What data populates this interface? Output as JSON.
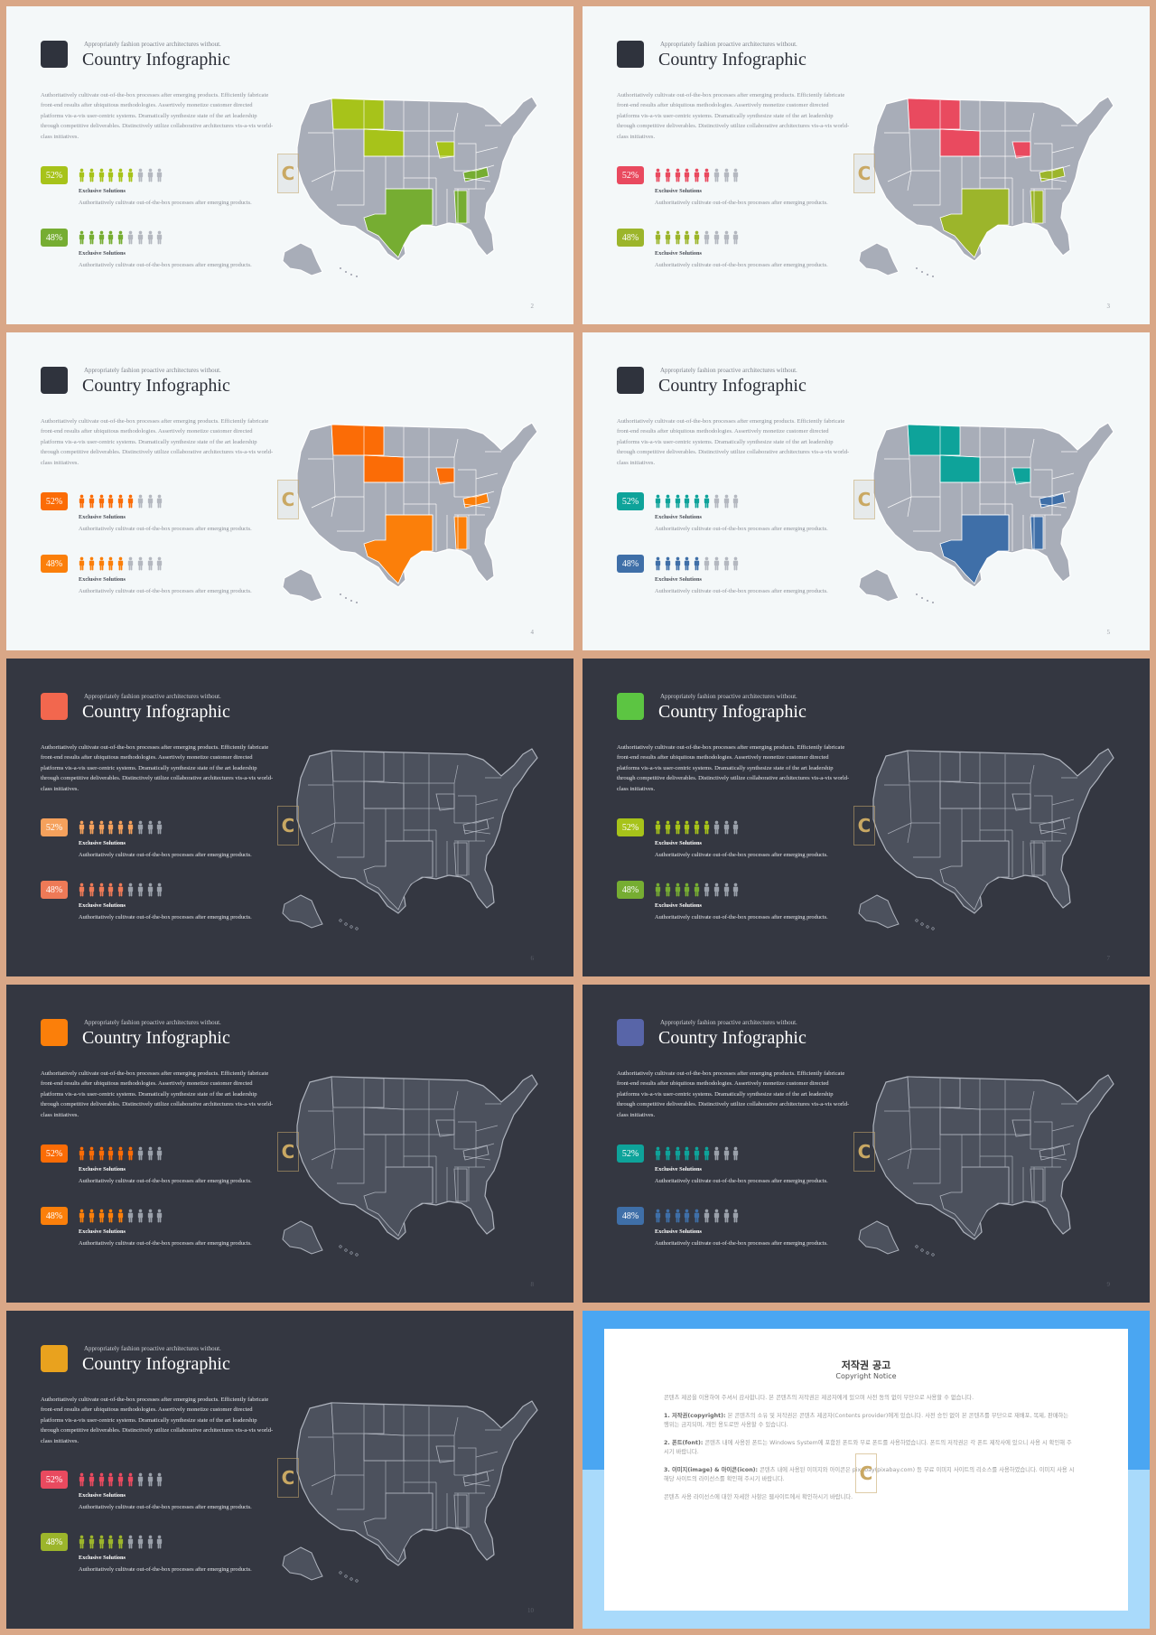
{
  "slides": [
    {
      "id": 2,
      "theme": "light",
      "accent": "#2f333d",
      "page": "2",
      "subtitle": "Appropriately fashion proactive architectures without.",
      "title": "Country Infographic",
      "desc": "Authoritatively cultivate out-of-the-box processes after emerging products. Efficiently fabricate front-end results after ubiquitous methodologies. Assertively monetize customer directed platforms vis-a-vis user-centric systems. Dramatically synthesize state of the art leadership through competitive deliverables. Distinctively utilize collaborative architectures vis-a-vis world-class initiatives.",
      "stats": [
        {
          "value": "52%",
          "color": "#a7c31a",
          "filled": 6,
          "title": "Exclusive Solutions",
          "desc": "Authoritatively cultivate out-of-the-box processes after emerging products."
        },
        {
          "value": "48%",
          "color": "#76ad32",
          "filled": 5,
          "title": "Exclusive Solutions",
          "desc": "Authoritatively cultivate out-of-the-box processes after emerging products."
        }
      ],
      "map_colors": {
        "base": "#a8adb8",
        "border": "#ffffff",
        "group_a": "#a7c31a",
        "group_b": "#76ad32"
      }
    },
    {
      "id": 3,
      "theme": "light",
      "accent": "#2f333d",
      "page": "3",
      "subtitle": "Appropriately fashion proactive architectures without.",
      "title": "Country Infographic",
      "desc": "Authoritatively cultivate out-of-the-box processes after emerging products. Efficiently fabricate front-end results after ubiquitous methodologies. Assertively monetize customer directed platforms vis-a-vis user-centric systems. Dramatically synthesize state of the art leadership through competitive deliverables. Distinctively utilize collaborative architectures vis-a-vis world-class initiatives.",
      "stats": [
        {
          "value": "52%",
          "color": "#e94a5f",
          "filled": 6,
          "title": "Exclusive Solutions",
          "desc": "Authoritatively cultivate out-of-the-box processes after emerging products."
        },
        {
          "value": "48%",
          "color": "#9cb52b",
          "filled": 5,
          "title": "Exclusive Solutions",
          "desc": "Authoritatively cultivate out-of-the-box processes after emerging products."
        }
      ],
      "map_colors": {
        "base": "#a8adb8",
        "border": "#ffffff",
        "group_a": "#e94a5f",
        "group_b": "#9cb52b"
      }
    },
    {
      "id": 4,
      "theme": "light",
      "accent": "#2f333d",
      "page": "4",
      "subtitle": "Appropriately fashion proactive architectures without.",
      "title": "Country Infographic",
      "desc": "Authoritatively cultivate out-of-the-box processes after emerging products. Efficiently fabricate front-end results after ubiquitous methodologies. Assertively monetize customer directed platforms vis-a-vis user-centric systems. Dramatically synthesize state of the art leadership through competitive deliverables. Distinctively utilize collaborative architectures vis-a-vis world-class initiatives.",
      "stats": [
        {
          "value": "52%",
          "color": "#fb6c06",
          "filled": 6,
          "title": "Exclusive Solutions",
          "desc": "Authoritatively cultivate out-of-the-box processes after emerging products."
        },
        {
          "value": "48%",
          "color": "#fb7f0a",
          "filled": 5,
          "title": "Exclusive Solutions",
          "desc": "Authoritatively cultivate out-of-the-box processes after emerging products."
        }
      ],
      "map_colors": {
        "base": "#a8adb8",
        "border": "#ffffff",
        "group_a": "#fb6c06",
        "group_b": "#fb7f0a"
      }
    },
    {
      "id": 5,
      "theme": "light",
      "accent": "#2f333d",
      "page": "5",
      "subtitle": "Appropriately fashion proactive architectures without.",
      "title": "Country Infographic",
      "desc": "Authoritatively cultivate out-of-the-box processes after emerging products. Efficiently fabricate front-end results after ubiquitous methodologies. Assertively monetize customer directed platforms vis-a-vis user-centric systems. Dramatically synthesize state of the art leadership through competitive deliverables. Distinctively utilize collaborative architectures vis-a-vis world-class initiatives.",
      "stats": [
        {
          "value": "52%",
          "color": "#0ea39a",
          "filled": 6,
          "title": "Exclusive Solutions",
          "desc": "Authoritatively cultivate out-of-the-box processes after emerging products."
        },
        {
          "value": "48%",
          "color": "#3f6fa8",
          "filled": 5,
          "title": "Exclusive Solutions",
          "desc": "Authoritatively cultivate out-of-the-box processes after emerging products."
        }
      ],
      "map_colors": {
        "base": "#a8adb8",
        "border": "#ffffff",
        "group_a": "#0ea39a",
        "group_b": "#3f6fa8"
      }
    },
    {
      "id": 6,
      "theme": "dark",
      "accent": "#f2674e",
      "page": "6",
      "subtitle": "Appropriately fashion proactive architectures without.",
      "title": "Country Infographic",
      "desc": "Authoritatively cultivate out-of-the-box processes after emerging products. Efficiently fabricate front-end results after ubiquitous methodologies. Assertively monetize customer directed platforms vis-a-vis user-centric systems. Dramatically synthesize state of the art leadership through competitive deliverables. Distinctively utilize collaborative architectures vis-a-vis world-class initiatives.",
      "stats": [
        {
          "value": "52%",
          "color": "#f5a15c",
          "filled": 6,
          "title": "Exclusive Solutions",
          "desc": "Authoritatively cultivate out-of-the-box processes after emerging products."
        },
        {
          "value": "48%",
          "color": "#ee7a57",
          "filled": 5,
          "title": "Exclusive Solutions",
          "desc": "Authoritatively cultivate out-of-the-box processes after emerging products."
        }
      ],
      "map_colors": {
        "base": "#4c515d",
        "border": "#aeb3bd",
        "group_a": "#4c515d",
        "group_b": "#4c515d"
      }
    },
    {
      "id": 7,
      "theme": "dark",
      "accent": "#5cc542",
      "page": "7",
      "subtitle": "Appropriately fashion proactive architectures without.",
      "title": "Country Infographic",
      "desc": "Authoritatively cultivate out-of-the-box processes after emerging products. Efficiently fabricate front-end results after ubiquitous methodologies. Assertively monetize customer directed platforms vis-a-vis user-centric systems. Dramatically synthesize state of the art leadership through competitive deliverables. Distinctively utilize collaborative architectures vis-a-vis world-class initiatives.",
      "stats": [
        {
          "value": "52%",
          "color": "#a7c31a",
          "filled": 6,
          "title": "Exclusive Solutions",
          "desc": "Authoritatively cultivate out-of-the-box processes after emerging products."
        },
        {
          "value": "48%",
          "color": "#76ad32",
          "filled": 5,
          "title": "Exclusive Solutions",
          "desc": "Authoritatively cultivate out-of-the-box processes after emerging products."
        }
      ],
      "map_colors": {
        "base": "#4c515d",
        "border": "#aeb3bd",
        "group_a": "#4c515d",
        "group_b": "#4c515d"
      }
    },
    {
      "id": 8,
      "theme": "dark",
      "accent": "#fb7f0a",
      "page": "8",
      "subtitle": "Appropriately fashion proactive architectures without.",
      "title": "Country Infographic",
      "desc": "Authoritatively cultivate out-of-the-box processes after emerging products. Efficiently fabricate front-end results after ubiquitous methodologies. Assertively monetize customer directed platforms vis-a-vis user-centric systems. Dramatically synthesize state of the art leadership through competitive deliverables. Distinctively utilize collaborative architectures vis-a-vis world-class initiatives.",
      "stats": [
        {
          "value": "52%",
          "color": "#fb6c06",
          "filled": 6,
          "title": "Exclusive Solutions",
          "desc": "Authoritatively cultivate out-of-the-box processes after emerging products."
        },
        {
          "value": "48%",
          "color": "#fb7f0a",
          "filled": 5,
          "title": "Exclusive Solutions",
          "desc": "Authoritatively cultivate out-of-the-box processes after emerging products."
        }
      ],
      "map_colors": {
        "base": "#4c515d",
        "border": "#aeb3bd",
        "group_a": "#4c515d",
        "group_b": "#4c515d"
      }
    },
    {
      "id": 9,
      "theme": "dark",
      "accent": "#5865a8",
      "page": "9",
      "subtitle": "Appropriately fashion proactive architectures without.",
      "title": "Country Infographic",
      "desc": "Authoritatively cultivate out-of-the-box processes after emerging products. Efficiently fabricate front-end results after ubiquitous methodologies. Assertively monetize customer directed platforms vis-a-vis user-centric systems. Dramatically synthesize state of the art leadership through competitive deliverables. Distinctively utilize collaborative architectures vis-a-vis world-class initiatives.",
      "stats": [
        {
          "value": "52%",
          "color": "#0ea39a",
          "filled": 6,
          "title": "Exclusive Solutions",
          "desc": "Authoritatively cultivate out-of-the-box processes after emerging products."
        },
        {
          "value": "48%",
          "color": "#3f6fa8",
          "filled": 5,
          "title": "Exclusive Solutions",
          "desc": "Authoritatively cultivate out-of-the-box processes after emerging products."
        }
      ],
      "map_colors": {
        "base": "#4c515d",
        "border": "#aeb3bd",
        "group_a": "#4c515d",
        "group_b": "#4c515d"
      }
    },
    {
      "id": 10,
      "theme": "dark",
      "accent": "#e9a21e",
      "page": "10",
      "subtitle": "Appropriately fashion proactive architectures without.",
      "title": "Country Infographic",
      "desc": "Authoritatively cultivate out-of-the-box processes after emerging products. Efficiently fabricate front-end results after ubiquitous methodologies. Assertively monetize customer directed platforms vis-a-vis user-centric systems. Dramatically synthesize state of the art leadership through competitive deliverables. Distinctively utilize collaborative architectures vis-a-vis world-class initiatives.",
      "stats": [
        {
          "value": "52%",
          "color": "#e94a5f",
          "filled": 6,
          "title": "Exclusive Solutions",
          "desc": "Authoritatively cultivate out-of-the-box processes after emerging products."
        },
        {
          "value": "48%",
          "color": "#9cb52b",
          "filled": 5,
          "title": "Exclusive Solutions",
          "desc": "Authoritatively cultivate out-of-the-box processes after emerging products."
        }
      ],
      "map_colors": {
        "base": "#4c515d",
        "border": "#aeb3bd",
        "group_a": "#4c515d",
        "group_b": "#4c515d"
      }
    }
  ],
  "copyright": {
    "title": "저작권 공고",
    "subtitle": "Copyright Notice",
    "intro": "콘텐츠 제공을 이용하여 주셔서 감사합니다. 본 콘텐츠의 저작권은 제공자에게 있으며 사전 동의 없이 무단으로 사용할 수 없습니다.",
    "s1_label": "1. 저작권(copyright):",
    "s1": " 본 콘텐츠의 소유 및 저작권은 콘텐츠 제공자(Contents provider)에게 있습니다. 사전 승인 없이 본 콘텐츠를 무단으로 재배포, 복제, 판매하는 행위는 금지되며, 개인 용도로만 사용할 수 있습니다.",
    "s2_label": "2. 폰트(font):",
    "s2": " 콘텐츠 내에 사용된 폰트는 Windows System에 포함된 폰트와 무료 폰트를 사용하였습니다. 폰트의 저작권은 각 폰트 제작사에 있으니 사용 시 확인해 주시기 바랍니다.",
    "s3_label": "3. 이미지(image) & 아이콘(icon):",
    "s3": " 콘텐츠 내에 사용된 이미지와 아이콘은 pixabay(pixabay.com) 등 무료 이미지 사이트의 리소스를 사용하였습니다. 이미지 사용 시 해당 사이트의 라이선스를 확인해 주시기 바랍니다.",
    "outro": "콘텐츠 사용 라이선스에 대한 자세한 사항은 웹사이트에서 확인하시기 바랍니다."
  }
}
